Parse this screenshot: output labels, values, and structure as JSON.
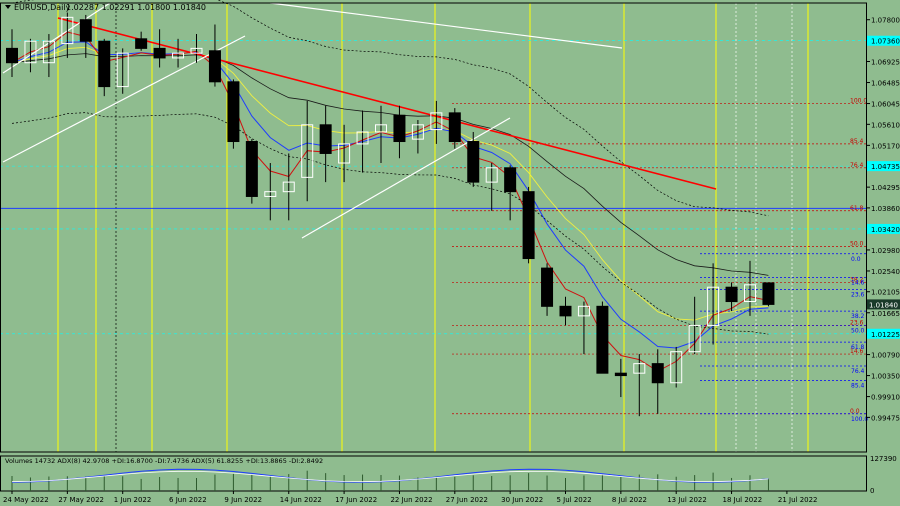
{
  "header": {
    "symbol": "EURUSD,Daily",
    "ohlc": "1.02287 1.02291 1.01800 1.01840"
  },
  "colors": {
    "background": "#8fbc8f",
    "bull": "#ffffff",
    "bear": "#000000",
    "vline": "#ffff00",
    "hline": "#00ffff",
    "trend_red": "#ff0000",
    "trend_white": "#ffffff",
    "fib_red": "#c80000",
    "fib_blue": "#0000ff",
    "price_tag": "#00ffff",
    "current_tag": "#1a3a2a"
  },
  "chart_data": {
    "type": "candlestick",
    "y_axis": {
      "min": 0.9875,
      "max": 1.0815,
      "ticks": [
        "1.07800",
        "1.07360",
        "1.06925",
        "1.06485",
        "1.06045",
        "1.05610",
        "1.05170",
        "1.04735",
        "1.04295",
        "1.03860",
        "1.03420",
        "1.02980",
        "1.02540",
        "1.02105",
        "1.01665",
        "1.01225",
        "1.00790",
        "1.00350",
        "0.99910",
        "0.99475"
      ],
      "current_price": "1.01840",
      "highlight_levels": [
        "1.07360",
        "1.04735",
        "1.03420",
        "1.01225"
      ]
    },
    "x_axis": {
      "labels": [
        "24 May 2022",
        "27 May 2022",
        "1 Jun 2022",
        "6 Jun 2022",
        "9 Jun 2022",
        "14 Jun 2022",
        "17 Jun 2022",
        "22 Jun 2022",
        "27 Jun 2022",
        "30 Jun 2022",
        "5 Jul 2022",
        "8 Jul 2022",
        "13 Jul 2022",
        "18 Jul 2022",
        "21 Jul 2022"
      ],
      "label_index": [
        0,
        3,
        6,
        9,
        12,
        15,
        18,
        21,
        24,
        27,
        30,
        33,
        36,
        39,
        42
      ]
    },
    "candles": [
      {
        "o": 1.072,
        "h": 1.076,
        "l": 1.066,
        "c": 1.069
      },
      {
        "o": 1.069,
        "h": 1.074,
        "l": 1.067,
        "c": 1.0735
      },
      {
        "o": 1.069,
        "h": 1.075,
        "l": 1.066,
        "c": 1.0735
      },
      {
        "o": 1.073,
        "h": 1.0795,
        "l": 1.07,
        "c": 1.0785
      },
      {
        "o": 1.078,
        "h": 1.079,
        "l": 1.07,
        "c": 1.0735
      },
      {
        "o": 1.0735,
        "h": 1.074,
        "l": 1.062,
        "c": 1.064
      },
      {
        "o": 1.064,
        "h": 1.072,
        "l": 1.0625,
        "c": 1.071
      },
      {
        "o": 1.074,
        "h": 1.0755,
        "l": 1.0715,
        "c": 1.072
      },
      {
        "o": 1.072,
        "h": 1.076,
        "l": 1.068,
        "c": 1.07
      },
      {
        "o": 1.07,
        "h": 1.074,
        "l": 1.068,
        "c": 1.071
      },
      {
        "o": 1.071,
        "h": 1.075,
        "l": 1.069,
        "c": 1.072
      },
      {
        "o": 1.0715,
        "h": 1.077,
        "l": 1.064,
        "c": 1.065
      },
      {
        "o": 1.065,
        "h": 1.0655,
        "l": 1.051,
        "c": 1.0525
      },
      {
        "o": 1.0525,
        "h": 1.053,
        "l": 1.0395,
        "c": 1.041
      },
      {
        "o": 1.041,
        "h": 1.048,
        "l": 1.036,
        "c": 1.042
      },
      {
        "o": 1.042,
        "h": 1.05,
        "l": 1.036,
        "c": 1.044
      },
      {
        "o": 1.045,
        "h": 1.061,
        "l": 1.04,
        "c": 1.056
      },
      {
        "o": 1.056,
        "h": 1.06,
        "l": 1.044,
        "c": 1.05
      },
      {
        "o": 1.048,
        "h": 1.056,
        "l": 1.044,
        "c": 1.052
      },
      {
        "o": 1.052,
        "h": 1.059,
        "l": 1.046,
        "c": 1.0545
      },
      {
        "o": 1.0545,
        "h": 1.06,
        "l": 1.048,
        "c": 1.056
      },
      {
        "o": 1.058,
        "h": 1.06,
        "l": 1.049,
        "c": 1.0525
      },
      {
        "o": 1.053,
        "h": 1.057,
        "l": 1.05,
        "c": 1.056
      },
      {
        "o": 1.055,
        "h": 1.061,
        "l": 1.052,
        "c": 1.0585
      },
      {
        "o": 1.0585,
        "h": 1.0595,
        "l": 1.051,
        "c": 1.0525
      },
      {
        "o": 1.0525,
        "h": 1.0545,
        "l": 1.043,
        "c": 1.044
      },
      {
        "o": 1.044,
        "h": 1.048,
        "l": 1.038,
        "c": 1.047
      },
      {
        "o": 1.047,
        "h": 1.0475,
        "l": 1.036,
        "c": 1.042
      },
      {
        "o": 1.042,
        "h": 1.043,
        "l": 1.027,
        "c": 1.028
      },
      {
        "o": 1.026,
        "h": 1.027,
        "l": 1.016,
        "c": 1.018
      },
      {
        "o": 1.018,
        "h": 1.02,
        "l": 1.014,
        "c": 1.016
      },
      {
        "o": 1.016,
        "h": 1.019,
        "l": 1.008,
        "c": 1.018
      },
      {
        "o": 1.018,
        "h": 1.019,
        "l": 1.004,
        "c": 1.004
      },
      {
        "o": 1.004,
        "h": 1.007,
        "l": 0.999,
        "c": 1.0035
      },
      {
        "o": 1.004,
        "h": 1.008,
        "l": 0.995,
        "c": 1.006
      },
      {
        "o": 1.006,
        "h": 1.009,
        "l": 0.9955,
        "c": 1.002
      },
      {
        "o": 1.002,
        "h": 1.0095,
        "l": 1.001,
        "c": 1.0085
      },
      {
        "o": 1.0085,
        "h": 1.02,
        "l": 1.008,
        "c": 1.014
      },
      {
        "o": 1.014,
        "h": 1.027,
        "l": 1.01,
        "c": 1.022
      },
      {
        "o": 1.022,
        "h": 1.023,
        "l": 1.017,
        "c": 1.019
      },
      {
        "o": 1.019,
        "h": 1.0275,
        "l": 1.016,
        "c": 1.0225
      },
      {
        "o": 1.0229,
        "h": 1.0229,
        "l": 1.018,
        "c": 1.0184
      }
    ],
    "fib_red": [
      {
        "label": "100.0",
        "price": 1.0605
      },
      {
        "label": "85.4",
        "price": 1.052
      },
      {
        "label": "76.4",
        "price": 1.047
      },
      {
        "label": "61.8",
        "price": 1.038
      },
      {
        "label": "50.0",
        "price": 1.0305
      },
      {
        "label": "38.2",
        "price": 1.023
      },
      {
        "label": "23.6",
        "price": 1.014
      },
      {
        "label": "14.6",
        "price": 1.008
      },
      {
        "label": "0.0",
        "price": 0.9955
      }
    ],
    "fib_blue": [
      {
        "label": "0.0",
        "price": 1.029
      },
      {
        "label": "14.6",
        "price": 1.024
      },
      {
        "label": "23.6",
        "price": 1.0215
      },
      {
        "label": "38.2",
        "price": 1.017
      },
      {
        "label": "50.0",
        "price": 1.014
      },
      {
        "label": "61.8",
        "price": 1.0105
      },
      {
        "label": "76.4",
        "price": 1.0055
      },
      {
        "label": "85.4",
        "price": 1.0025
      },
      {
        "label": "100.0",
        "price": 0.9955
      }
    ],
    "blue_hline_price": 1.0385,
    "indicator": {
      "label": "Volumes 14732  ADX(8) 42.9708 +DI:16.8700 -DI:7.4736  ADX(5) 61.8255 +DI:13.8865 -DI:2.8492",
      "ticks": [
        "127390",
        "0"
      ]
    }
  }
}
